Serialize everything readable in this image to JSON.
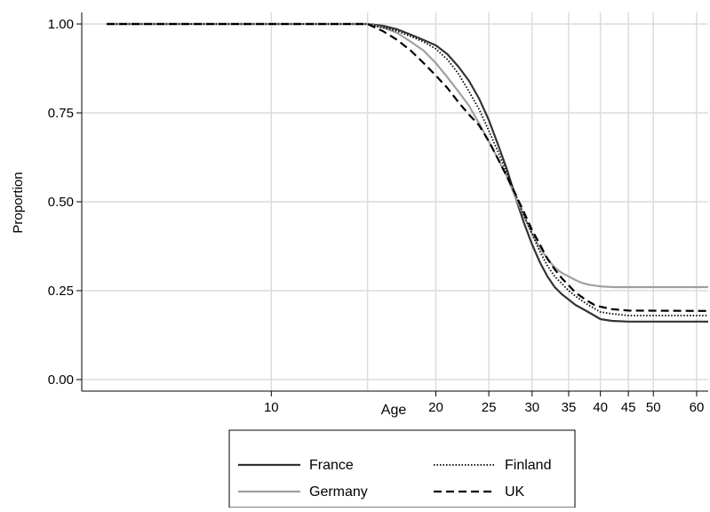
{
  "chart_data": {
    "type": "line",
    "title": "",
    "xlabel": "Age",
    "ylabel": "Proportion",
    "xscale": "log",
    "xlim": [
      4.5,
      63
    ],
    "ylim": [
      0,
      1
    ],
    "xticks": [
      10,
      20,
      25,
      30,
      35,
      40,
      45,
      50,
      60
    ],
    "xtick_labels": [
      "10",
      "20",
      "25",
      "30",
      "35",
      "40",
      "45",
      "50",
      "60"
    ],
    "extra_gridlines_x": [
      15
    ],
    "yticks": [
      0,
      0.25,
      0.5,
      0.75,
      1.0
    ],
    "ytick_labels": [
      "0.00",
      "0.25",
      "0.50",
      "0.75",
      "1.00"
    ],
    "grid": true,
    "legend_position": "bottom",
    "series": [
      {
        "name": "France",
        "color": "#333333",
        "dash": "solid",
        "points": [
          [
            5,
            1.0
          ],
          [
            15,
            1.0
          ],
          [
            16,
            0.995
          ],
          [
            17,
            0.985
          ],
          [
            18,
            0.97
          ],
          [
            19,
            0.955
          ],
          [
            20,
            0.94
          ],
          [
            21,
            0.915
          ],
          [
            22,
            0.88
          ],
          [
            23,
            0.84
          ],
          [
            24,
            0.79
          ],
          [
            25,
            0.73
          ],
          [
            26,
            0.66
          ],
          [
            27,
            0.59
          ],
          [
            28,
            0.51
          ],
          [
            29,
            0.44
          ],
          [
            30,
            0.38
          ],
          [
            31,
            0.33
          ],
          [
            32,
            0.29
          ],
          [
            33,
            0.26
          ],
          [
            34,
            0.24
          ],
          [
            35,
            0.225
          ],
          [
            36,
            0.21
          ],
          [
            37,
            0.2
          ],
          [
            38,
            0.19
          ],
          [
            39,
            0.18
          ],
          [
            40,
            0.17
          ],
          [
            42,
            0.165
          ],
          [
            45,
            0.163
          ],
          [
            63,
            0.163
          ]
        ]
      },
      {
        "name": "Germany",
        "color": "#a0a0a0",
        "dash": "solid",
        "points": [
          [
            5,
            1.0
          ],
          [
            15,
            1.0
          ],
          [
            16,
            0.99
          ],
          [
            17,
            0.975
          ],
          [
            18,
            0.95
          ],
          [
            19,
            0.925
          ],
          [
            20,
            0.89
          ],
          [
            21,
            0.85
          ],
          [
            22,
            0.81
          ],
          [
            23,
            0.77
          ],
          [
            24,
            0.72
          ],
          [
            25,
            0.67
          ],
          [
            26,
            0.62
          ],
          [
            27,
            0.57
          ],
          [
            28,
            0.51
          ],
          [
            29,
            0.46
          ],
          [
            30,
            0.41
          ],
          [
            31,
            0.37
          ],
          [
            32,
            0.34
          ],
          [
            33,
            0.315
          ],
          [
            34,
            0.3
          ],
          [
            35,
            0.29
          ],
          [
            36,
            0.28
          ],
          [
            37,
            0.272
          ],
          [
            38,
            0.267
          ],
          [
            40,
            0.262
          ],
          [
            42,
            0.26
          ],
          [
            45,
            0.26
          ],
          [
            63,
            0.26
          ]
        ]
      },
      {
        "name": "Finland",
        "color": "#000000",
        "dash": "dotted",
        "points": [
          [
            5,
            1.0
          ],
          [
            15,
            1.0
          ],
          [
            16,
            0.99
          ],
          [
            17,
            0.98
          ],
          [
            18,
            0.965
          ],
          [
            19,
            0.95
          ],
          [
            20,
            0.93
          ],
          [
            21,
            0.9
          ],
          [
            22,
            0.86
          ],
          [
            23,
            0.81
          ],
          [
            24,
            0.76
          ],
          [
            25,
            0.7
          ],
          [
            26,
            0.64
          ],
          [
            27,
            0.58
          ],
          [
            28,
            0.52
          ],
          [
            29,
            0.46
          ],
          [
            30,
            0.41
          ],
          [
            31,
            0.36
          ],
          [
            32,
            0.32
          ],
          [
            33,
            0.29
          ],
          [
            34,
            0.27
          ],
          [
            35,
            0.25
          ],
          [
            36,
            0.235
          ],
          [
            37,
            0.222
          ],
          [
            38,
            0.21
          ],
          [
            39,
            0.2
          ],
          [
            40,
            0.19
          ],
          [
            42,
            0.185
          ],
          [
            45,
            0.18
          ],
          [
            63,
            0.18
          ]
        ]
      },
      {
        "name": "UK",
        "color": "#000000",
        "dash": "dashed",
        "points": [
          [
            5,
            1.0
          ],
          [
            15,
            1.0
          ],
          [
            16,
            0.98
          ],
          [
            17,
            0.955
          ],
          [
            18,
            0.925
          ],
          [
            19,
            0.89
          ],
          [
            20,
            0.855
          ],
          [
            21,
            0.82
          ],
          [
            22,
            0.78
          ],
          [
            23,
            0.745
          ],
          [
            24,
            0.715
          ],
          [
            25,
            0.67
          ],
          [
            26,
            0.62
          ],
          [
            27,
            0.57
          ],
          [
            28,
            0.52
          ],
          [
            29,
            0.47
          ],
          [
            30,
            0.42
          ],
          [
            31,
            0.38
          ],
          [
            32,
            0.34
          ],
          [
            33,
            0.31
          ],
          [
            34,
            0.285
          ],
          [
            35,
            0.265
          ],
          [
            36,
            0.245
          ],
          [
            37,
            0.232
          ],
          [
            38,
            0.22
          ],
          [
            39,
            0.21
          ],
          [
            40,
            0.205
          ],
          [
            42,
            0.198
          ],
          [
            45,
            0.194
          ],
          [
            63,
            0.193
          ]
        ]
      }
    ],
    "legend": {
      "columns": 2,
      "entries": [
        "France",
        "Finland",
        "Germany",
        "UK"
      ]
    }
  }
}
